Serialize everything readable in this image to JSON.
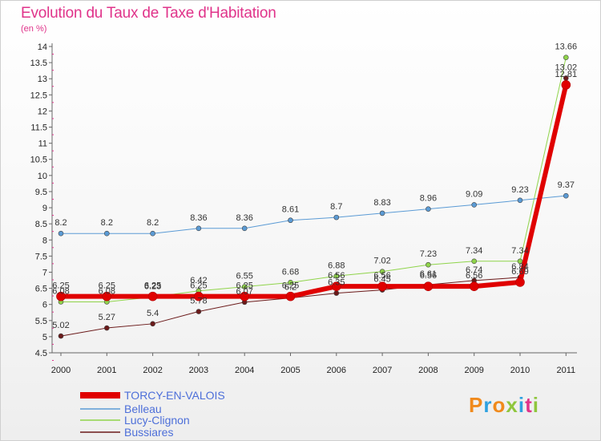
{
  "title": "Evolution du Taux de Taxe d'Habitation",
  "subtitle": "(en %)",
  "logo": {
    "text": "Proxiti",
    "colors": [
      "#f08a1c",
      "#2ea1e0",
      "#f08a1c",
      "#8fc63d",
      "#2ea1e0",
      "#e0338a",
      "#8fc63d"
    ]
  },
  "chart_data": {
    "type": "line",
    "title": "Evolution du Taux de Taxe d'Habitation",
    "ylabel": "(en %)",
    "x": [
      2000,
      2001,
      2002,
      2003,
      2004,
      2005,
      2006,
      2007,
      2008,
      2009,
      2010,
      2011
    ],
    "ylim": [
      4.5,
      14
    ],
    "yticks": [
      "4.5",
      "5",
      "5.5",
      "6",
      "6.5",
      "7",
      "7.5",
      "8",
      "8.5",
      "9",
      "9.5",
      "10",
      "10.5",
      "11",
      "11.5",
      "12",
      "12.5",
      "13",
      "13.5",
      "14"
    ],
    "grid": false,
    "legend_position": "bottom-left",
    "series": [
      {
        "name": "Bussiares",
        "color": "#6b1a1a",
        "width": 1,
        "values": [
          5.02,
          5.27,
          5.4,
          5.78,
          6.07,
          6.2,
          6.35,
          6.45,
          6.61,
          6.74,
          6.84,
          13.02
        ],
        "labels": [
          "5.02",
          "5.27",
          "5.4",
          "5.78",
          "6.07",
          "6.2",
          "6.35",
          "6.45",
          "6.61",
          "6.74",
          "6.84",
          "13.02"
        ]
      },
      {
        "name": "Lucy-Clignon",
        "color": "#8fd44a",
        "width": 1,
        "values": [
          6.08,
          6.08,
          6.23,
          6.42,
          6.55,
          6.68,
          6.88,
          7.02,
          7.23,
          7.34,
          7.34,
          13.66
        ],
        "labels": [
          "6.08",
          "6.08",
          "6.23",
          "6.42",
          "6.55",
          "6.68",
          "6.88",
          "7.02",
          "7.23",
          "7.34",
          "7.34",
          "13.66"
        ]
      },
      {
        "name": "Belleau",
        "color": "#5b9bd5",
        "width": 1,
        "values": [
          8.2,
          8.2,
          8.2,
          8.36,
          8.36,
          8.61,
          8.7,
          8.83,
          8.96,
          9.09,
          9.23,
          9.37
        ],
        "labels": [
          "8.2",
          "8.2",
          "8.2",
          "8.36",
          "8.36",
          "8.61",
          "8.7",
          "8.83",
          "8.96",
          "9.09",
          "9.23",
          "9.37"
        ]
      },
      {
        "name": "TORCY-EN-VALOIS",
        "color": "#e00000",
        "width": 6,
        "values": [
          6.25,
          6.25,
          6.25,
          6.25,
          6.25,
          6.25,
          6.56,
          6.56,
          6.56,
          6.56,
          6.69,
          12.81
        ],
        "labels": [
          "6.25",
          "6.25",
          "6.25",
          "6.25",
          "6.25",
          "6.25",
          "6.56",
          "6.56",
          "6.56",
          "6.56",
          "6.69",
          "12.81"
        ]
      }
    ],
    "legend": [
      "TORCY-EN-VALOIS",
      "Belleau",
      "Lucy-Clignon",
      "Bussiares"
    ]
  }
}
